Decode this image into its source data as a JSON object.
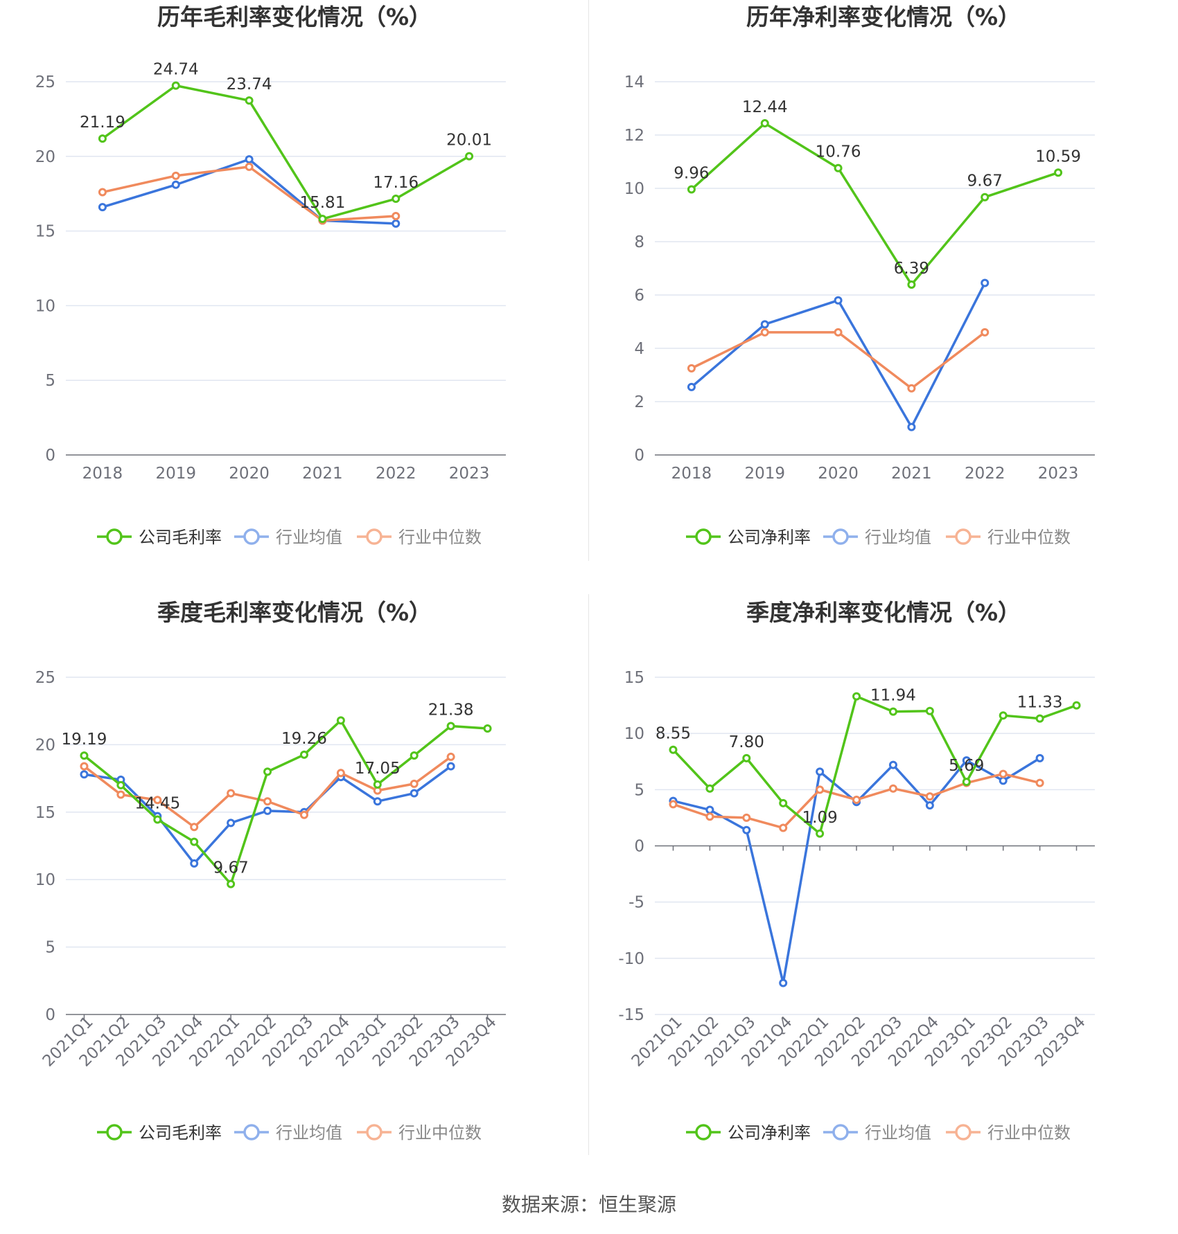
{
  "colors": {
    "company": "#52c41a",
    "avg": "#3a75dc",
    "median": "#f08a5d",
    "grid": "#e0e6f1",
    "axis": "#6e7079",
    "label": "#333333"
  },
  "source_text": "数据来源：恒生聚源",
  "chart_data": [
    {
      "type": "line",
      "title": "历年毛利率变化情况（%）",
      "categories": [
        "2018",
        "2019",
        "2020",
        "2021",
        "2022",
        "2023"
      ],
      "ylim": [
        0,
        25
      ],
      "yticks": [
        0,
        5,
        10,
        15,
        20,
        25
      ],
      "rotate_x": false,
      "tick_marks": false,
      "grid": true,
      "series": [
        {
          "name": "公司毛利率",
          "role": "company",
          "values": [
            21.19,
            24.74,
            23.74,
            15.81,
            17.16,
            20.01
          ],
          "labels": [
            "21.19",
            "24.74",
            "23.74",
            "15.81",
            "17.16",
            "20.01"
          ]
        },
        {
          "name": "行业均值",
          "role": "avg",
          "values": [
            16.6,
            18.1,
            19.8,
            15.7,
            15.5,
            null
          ]
        },
        {
          "name": "行业中位数",
          "role": "median",
          "values": [
            17.6,
            18.7,
            19.3,
            15.7,
            16.0,
            null
          ]
        }
      ],
      "legend_position": "bottom"
    },
    {
      "type": "line",
      "title": "历年净利率变化情况（%）",
      "categories": [
        "2018",
        "2019",
        "2020",
        "2021",
        "2022",
        "2023"
      ],
      "ylim": [
        0,
        14
      ],
      "yticks": [
        0,
        2,
        4,
        6,
        8,
        10,
        12,
        14
      ],
      "rotate_x": false,
      "tick_marks": false,
      "grid": true,
      "series": [
        {
          "name": "公司净利率",
          "role": "company",
          "values": [
            9.96,
            12.44,
            10.76,
            6.39,
            9.67,
            10.59
          ],
          "labels": [
            "9.96",
            "12.44",
            "10.76",
            "6.39",
            "9.67",
            "10.59"
          ]
        },
        {
          "name": "行业均值",
          "role": "avg",
          "values": [
            2.55,
            4.9,
            5.8,
            1.05,
            6.45,
            null
          ]
        },
        {
          "name": "行业中位数",
          "role": "median",
          "values": [
            3.25,
            4.6,
            4.6,
            2.5,
            4.6,
            null
          ]
        }
      ],
      "legend_position": "bottom"
    },
    {
      "type": "line",
      "title": "季度毛利率变化情况（%）",
      "categories": [
        "2021Q1",
        "2021Q2",
        "2021Q3",
        "2021Q4",
        "2022Q1",
        "2022Q2",
        "2022Q3",
        "2022Q4",
        "2023Q1",
        "2023Q2",
        "2023Q3",
        "2023Q4"
      ],
      "ylim": [
        0,
        25
      ],
      "yticks": [
        0,
        5,
        10,
        15,
        20,
        25
      ],
      "rotate_x": true,
      "tick_marks": true,
      "grid": true,
      "series": [
        {
          "name": "公司毛利率",
          "role": "company",
          "values": [
            19.19,
            17.0,
            14.45,
            12.8,
            9.67,
            18.0,
            19.26,
            21.8,
            17.05,
            19.2,
            21.38,
            21.2
          ],
          "labels": [
            "19.19",
            "",
            "14.45",
            "",
            "9.67",
            "",
            "19.26",
            "",
            "17.05",
            "",
            "21.38",
            ""
          ]
        },
        {
          "name": "行业均值",
          "role": "avg",
          "values": [
            17.8,
            17.4,
            14.7,
            11.2,
            14.2,
            15.1,
            15.0,
            17.6,
            15.8,
            16.4,
            18.4,
            null
          ]
        },
        {
          "name": "行业中位数",
          "role": "median",
          "values": [
            18.4,
            16.3,
            15.9,
            13.9,
            16.4,
            15.8,
            14.8,
            17.9,
            16.6,
            17.1,
            19.1,
            null
          ]
        }
      ],
      "legend_position": "bottom"
    },
    {
      "type": "line",
      "title": "季度净利率变化情况（%）",
      "categories": [
        "2021Q1",
        "2021Q2",
        "2021Q3",
        "2021Q4",
        "2022Q1",
        "2022Q2",
        "2022Q3",
        "2022Q4",
        "2023Q1",
        "2023Q2",
        "2023Q3",
        "2023Q4"
      ],
      "ylim": [
        -15,
        15
      ],
      "yticks": [
        -15,
        -10,
        -5,
        0,
        5,
        10,
        15
      ],
      "rotate_x": true,
      "tick_marks": true,
      "grid": true,
      "series": [
        {
          "name": "公司净利率",
          "role": "company",
          "values": [
            8.55,
            5.1,
            7.8,
            3.8,
            1.09,
            13.3,
            11.94,
            12.0,
            5.69,
            11.6,
            11.33,
            12.5
          ],
          "labels": [
            "8.55",
            "",
            "7.80",
            "",
            "1.09",
            "",
            "11.94",
            "",
            "5.69",
            "",
            "11.33",
            ""
          ]
        },
        {
          "name": "行业均值",
          "role": "avg",
          "values": [
            4.0,
            3.2,
            1.4,
            -12.2,
            6.6,
            3.9,
            7.2,
            3.6,
            7.6,
            5.8,
            7.8,
            null
          ]
        },
        {
          "name": "行业中位数",
          "role": "median",
          "values": [
            3.7,
            2.6,
            2.5,
            1.6,
            5.0,
            4.1,
            5.1,
            4.4,
            5.6,
            6.4,
            5.6,
            null
          ]
        }
      ],
      "legend_position": "bottom"
    }
  ]
}
